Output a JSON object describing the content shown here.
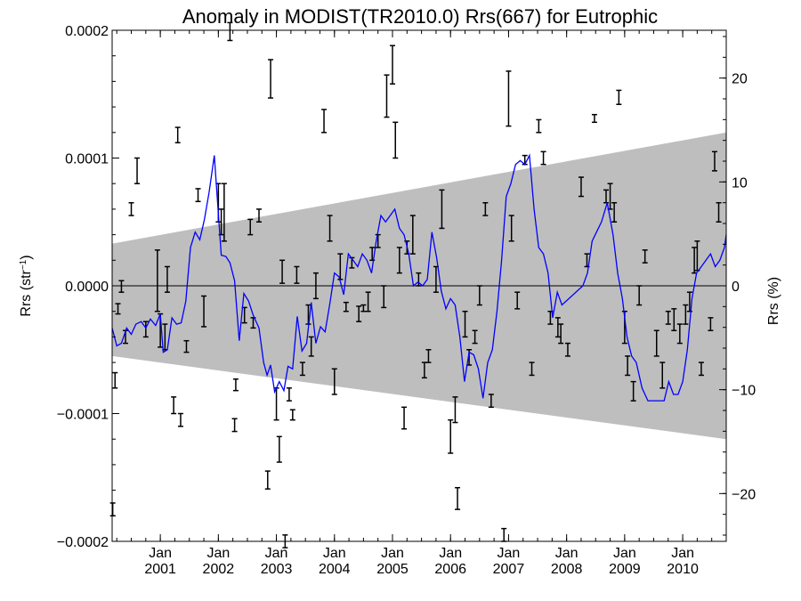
{
  "chart_data": {
    "type": "line",
    "title": "Anomaly in MODIST(TR2010.0) Rrs(667) for Eutrophic",
    "ylabel_left": "Rrs (str",
    "ylabel_left_sup": "−1",
    "ylabel_left_end": ")",
    "ylabel_right": "Rrs (%)",
    "xlim": [
      2000.17,
      2010.75
    ],
    "ylim_left": [
      -0.0002,
      0.0002
    ],
    "ylim_right": [
      -24.6,
      24.6
    ],
    "left_ticks": [
      {
        "value": 0.0002,
        "label": "0.0002"
      },
      {
        "value": 0.0001,
        "label": "0.0001"
      },
      {
        "value": 0.0,
        "label": "0.0000"
      },
      {
        "value": -0.0001,
        "label": "−0.0001"
      },
      {
        "value": -0.0002,
        "label": "−0.0002"
      }
    ],
    "right_ticks": [
      {
        "value": 20,
        "label": "20"
      },
      {
        "value": 10,
        "label": "10"
      },
      {
        "value": 0,
        "label": "0"
      },
      {
        "value": -10,
        "label": "−10"
      },
      {
        "value": -20,
        "label": "−20"
      }
    ],
    "x_ticks": [
      {
        "value": 2001.0,
        "label_top": "Jan",
        "label_bottom": "2001"
      },
      {
        "value": 2002.0,
        "label_top": "Jan",
        "label_bottom": "2002"
      },
      {
        "value": 2003.0,
        "label_top": "Jan",
        "label_bottom": "2003"
      },
      {
        "value": 2004.0,
        "label_top": "Jan",
        "label_bottom": "2004"
      },
      {
        "value": 2005.0,
        "label_top": "Jan",
        "label_bottom": "2005"
      },
      {
        "value": 2006.0,
        "label_top": "Jan",
        "label_bottom": "2006"
      },
      {
        "value": 2007.0,
        "label_top": "Jan",
        "label_bottom": "2007"
      },
      {
        "value": 2008.0,
        "label_top": "Jan",
        "label_bottom": "2008"
      },
      {
        "value": 2009.0,
        "label_top": "Jan",
        "label_bottom": "2009"
      },
      {
        "value": 2010.0,
        "label_top": "Jan",
        "label_bottom": "2010"
      }
    ],
    "band": {
      "start": {
        "x": 2000.17,
        "upper": 3.3e-05,
        "lower": -5.5e-05
      },
      "end": {
        "x": 2010.75,
        "upper": 0.00012,
        "lower": -0.00012
      },
      "color": "#bebebe"
    },
    "zero_line": true,
    "line_series": {
      "color": "#0000ff",
      "points": [
        [
          2000.17,
          -3.3e-05
        ],
        [
          2000.25,
          -4.7e-05
        ],
        [
          2000.33,
          -4.5e-05
        ],
        [
          2000.42,
          -3.3e-05
        ],
        [
          2000.5,
          -3.8e-05
        ],
        [
          2000.58,
          -3e-05
        ],
        [
          2000.67,
          -2.8e-05
        ],
        [
          2000.75,
          -3.3e-05
        ],
        [
          2000.83,
          -2.6e-05
        ],
        [
          2000.92,
          -3.1e-05
        ],
        [
          2001.0,
          -2.2e-05
        ],
        [
          2001.05,
          -5.2e-05
        ],
        [
          2001.12,
          -5e-05
        ],
        [
          2001.2,
          -2.5e-05
        ],
        [
          2001.28,
          -3e-05
        ],
        [
          2001.36,
          -2.9e-05
        ],
        [
          2001.44,
          -1.2e-05
        ],
        [
          2001.52,
          3e-05
        ],
        [
          2001.6,
          4.2e-05
        ],
        [
          2001.68,
          3.6e-05
        ],
        [
          2001.76,
          5.2e-05
        ],
        [
          2001.84,
          7.3e-05
        ],
        [
          2001.93,
          0.000102
        ],
        [
          2001.98,
          7e-05
        ],
        [
          2002.05,
          2.4e-05
        ],
        [
          2002.13,
          2.3e-05
        ],
        [
          2002.2,
          1.8e-05
        ],
        [
          2002.28,
          4e-06
        ],
        [
          2002.36,
          -4.3e-05
        ],
        [
          2002.44,
          -6e-06
        ],
        [
          2002.52,
          -1.2e-05
        ],
        [
          2002.6,
          -2.3e-05
        ],
        [
          2002.7,
          -3.3e-05
        ],
        [
          2002.78,
          -6e-05
        ],
        [
          2002.84,
          -7e-05
        ],
        [
          2002.9,
          -6.2e-05
        ],
        [
          2002.97,
          -8.3e-05
        ],
        [
          2003.05,
          -7.5e-05
        ],
        [
          2003.13,
          -8.2e-05
        ],
        [
          2003.2,
          -6.3e-05
        ],
        [
          2003.28,
          -6.5e-05
        ],
        [
          2003.36,
          -2.4e-05
        ],
        [
          2003.44,
          -5.1e-05
        ],
        [
          2003.52,
          -4.5e-05
        ],
        [
          2003.6,
          -1.3e-05
        ],
        [
          2003.68,
          -4.5e-05
        ],
        [
          2003.76,
          -3.2e-05
        ],
        [
          2003.84,
          -3.6e-05
        ],
        [
          2003.92,
          -1.4e-05
        ],
        [
          2004.0,
          1e-05
        ],
        [
          2004.08,
          7e-06
        ],
        [
          2004.16,
          -7e-06
        ],
        [
          2004.24,
          2.5e-05
        ],
        [
          2004.32,
          2e-05
        ],
        [
          2004.4,
          1.5e-05
        ],
        [
          2004.48,
          2.5e-05
        ],
        [
          2004.56,
          2e-05
        ],
        [
          2004.64,
          1e-05
        ],
        [
          2004.72,
          3.5e-05
        ],
        [
          2004.8,
          5.5e-05
        ],
        [
          2004.88,
          5e-05
        ],
        [
          2004.96,
          5.5e-05
        ],
        [
          2005.04,
          6e-05
        ],
        [
          2005.12,
          4.5e-05
        ],
        [
          2005.2,
          4e-05
        ],
        [
          2005.28,
          2.5e-05
        ],
        [
          2005.36,
          0.0
        ],
        [
          2005.44,
          3e-06
        ],
        [
          2005.52,
          0.0
        ],
        [
          2005.6,
          5e-06
        ],
        [
          2005.68,
          4.2e-05
        ],
        [
          2005.76,
          2.2e-05
        ],
        [
          2005.84,
          -4e-06
        ],
        [
          2005.92,
          -1.8e-05
        ],
        [
          2006.0,
          -1e-05
        ],
        [
          2006.08,
          -1.5e-05
        ],
        [
          2006.16,
          -4e-05
        ],
        [
          2006.24,
          -7.5e-05
        ],
        [
          2006.32,
          -5.2e-05
        ],
        [
          2006.4,
          -5.4e-05
        ],
        [
          2006.48,
          -6.5e-05
        ],
        [
          2006.56,
          -8.8e-05
        ],
        [
          2006.64,
          -6e-05
        ],
        [
          2006.72,
          -5e-05
        ],
        [
          2006.8,
          -2e-05
        ],
        [
          2006.88,
          2e-05
        ],
        [
          2006.96,
          7e-05
        ],
        [
          2007.04,
          8e-05
        ],
        [
          2007.12,
          9.5e-05
        ],
        [
          2007.2,
          9.8e-05
        ],
        [
          2007.28,
          9.5e-05
        ],
        [
          2007.36,
          0.000102
        ],
        [
          2007.44,
          6e-05
        ],
        [
          2007.52,
          3e-05
        ],
        [
          2007.6,
          2.5e-05
        ],
        [
          2007.68,
          1e-05
        ],
        [
          2007.76,
          -2.5e-05
        ],
        [
          2007.84,
          -5e-06
        ],
        [
          2007.92,
          -1.5e-05
        ],
        [
          2008.28,
          0.0
        ],
        [
          2008.36,
          1e-05
        ],
        [
          2008.44,
          3.5e-05
        ],
        [
          2008.6,
          5e-05
        ],
        [
          2008.7,
          6.5e-05
        ],
        [
          2008.8,
          4e-05
        ],
        [
          2008.88,
          1e-05
        ],
        [
          2008.96,
          -1e-05
        ],
        [
          2009.04,
          -4e-05
        ],
        [
          2009.12,
          -5.5e-05
        ],
        [
          2009.2,
          -6e-05
        ],
        [
          2009.3,
          -8e-05
        ],
        [
          2009.4,
          -9e-05
        ],
        [
          2009.5,
          -9e-05
        ],
        [
          2009.6,
          -9e-05
        ],
        [
          2009.68,
          -9e-05
        ],
        [
          2009.76,
          -7.5e-05
        ],
        [
          2009.84,
          -8.5e-05
        ],
        [
          2009.92,
          -8.5e-05
        ],
        [
          2010.0,
          -7.5e-05
        ],
        [
          2010.08,
          -5e-05
        ],
        [
          2010.16,
          -1e-05
        ],
        [
          2010.24,
          1e-05
        ],
        [
          2010.32,
          1.5e-05
        ],
        [
          2010.4,
          2e-05
        ],
        [
          2010.48,
          2.5e-05
        ],
        [
          2010.56,
          1.5e-05
        ],
        [
          2010.64,
          2e-05
        ],
        [
          2010.72,
          3e-05
        ],
        [
          2010.75,
          4e-05
        ]
      ]
    },
    "error_bars": {
      "color": "#000000",
      "items": [
        [
          2000.18,
          -0.00018,
          -0.00017
        ],
        [
          2000.22,
          -8e-05,
          -6.8e-05
        ],
        [
          2000.27,
          -2.2e-05,
          -1.4e-05
        ],
        [
          2000.33,
          -5e-06,
          4e-06
        ],
        [
          2000.4,
          -4.5e-05,
          -3.5e-05
        ],
        [
          2000.5,
          5.5e-05,
          6.5e-05
        ],
        [
          2000.6,
          8e-05,
          0.0001
        ],
        [
          2000.75,
          -4e-05,
          -2.8e-05
        ],
        [
          2000.95,
          -2e-05,
          2.8e-05
        ],
        [
          2001.0,
          -4.8e-05,
          -2.2e-05
        ],
        [
          2001.08,
          -5e-05,
          -3e-05
        ],
        [
          2001.12,
          -5e-06,
          1.5e-05
        ],
        [
          2001.23,
          -0.0001,
          -8.7e-05
        ],
        [
          2001.3,
          0.000112,
          0.000124
        ],
        [
          2001.35,
          -0.00011,
          -0.0001
        ],
        [
          2001.45,
          -5.2e-05,
          -4.3e-05
        ],
        [
          2001.65,
          6.6e-05,
          7.6e-05
        ],
        [
          2001.75,
          -3.2e-05,
          -8e-06
        ],
        [
          2002.0,
          5e-05,
          8e-05
        ],
        [
          2002.05,
          4e-05,
          6e-05
        ],
        [
          2002.1,
          3.5e-05,
          8e-05
        ],
        [
          2002.2,
          0.000192,
          0.000206
        ],
        [
          2002.28,
          -0.000114,
          -0.000104
        ],
        [
          2002.3,
          -8.2e-05,
          -7.3e-05
        ],
        [
          2002.45,
          -1.7e-05,
          -2.9e-05
        ],
        [
          2002.55,
          4e-05,
          5.2e-05
        ],
        [
          2002.6,
          -2.5e-05,
          -3.3e-05
        ],
        [
          2002.7,
          5e-05,
          6e-05
        ],
        [
          2002.85,
          -0.000145,
          -0.000159
        ],
        [
          2002.9,
          0.000147,
          0.000177
        ],
        [
          2003.0,
          -8e-05,
          -0.000105
        ],
        [
          2003.05,
          -0.000138,
          -0.000118
        ],
        [
          2003.1,
          2e-05,
          2e-06
        ],
        [
          2003.15,
          -0.000205,
          -0.000195
        ],
        [
          2003.22,
          -9e-05,
          -8e-05
        ],
        [
          2003.28,
          -0.000105,
          -9.7e-05
        ],
        [
          2003.35,
          1.5e-05,
          2e-06
        ],
        [
          2003.45,
          -7e-05,
          -6e-05
        ],
        [
          2003.55,
          -1.5e-05,
          -3e-05
        ],
        [
          2003.6,
          -5.5e-05,
          -4e-05
        ],
        [
          2003.68,
          -1e-05,
          1e-05
        ],
        [
          2003.82,
          0.00012,
          0.000138
        ],
        [
          2003.92,
          3.5e-05,
          5.5e-05
        ],
        [
          2004.0,
          -8.5e-05,
          -6.5e-05
        ],
        [
          2004.1,
          5e-06,
          2.5e-05
        ],
        [
          2004.2,
          -1.3e-05,
          -2e-05
        ],
        [
          2004.3,
          1.4e-05,
          2.2e-05
        ],
        [
          2004.42,
          -1.6e-05,
          -2.8e-05
        ],
        [
          2004.5,
          -1.5e-05,
          -2e-05
        ],
        [
          2004.58,
          -2e-05,
          -5e-06
        ],
        [
          2004.65,
          2e-05,
          3e-05
        ],
        [
          2004.75,
          3e-05,
          4e-05
        ],
        [
          2004.85,
          -1.7e-05,
          0.0
        ],
        [
          2004.9,
          0.000132,
          0.000165
        ],
        [
          2005.0,
          0.000158,
          0.000188
        ],
        [
          2005.05,
          0.0001,
          0.000128
        ],
        [
          2005.12,
          1e-05,
          3e-05
        ],
        [
          2005.2,
          -9.5e-05,
          -0.000112
        ],
        [
          2005.25,
          2.5e-05,
          3.5e-05
        ],
        [
          2005.35,
          2.5e-05,
          5.5e-05
        ],
        [
          2005.45,
          0.0,
          1e-05
        ],
        [
          2005.55,
          -6e-05,
          -7.2e-05
        ],
        [
          2005.62,
          -5e-05,
          -6e-05
        ],
        [
          2005.75,
          -5e-06,
          1.5e-05
        ],
        [
          2005.85,
          4.5e-05,
          7.5e-05
        ],
        [
          2006.0,
          -0.000105,
          -0.000131
        ],
        [
          2006.08,
          -8.7e-05,
          -0.000107
        ],
        [
          2006.12,
          -0.000158,
          -0.000175
        ],
        [
          2006.25,
          -2e-05,
          -4e-05
        ],
        [
          2006.32,
          -5e-05,
          -6.2e-05
        ],
        [
          2006.42,
          -3.5e-05,
          -4.5e-05
        ],
        [
          2006.5,
          -1.5e-05,
          0.0
        ],
        [
          2006.6,
          5.5e-05,
          6.5e-05
        ],
        [
          2006.7,
          -8.5e-05,
          -9.5e-05
        ],
        [
          2006.92,
          -0.00019,
          -0.0002
        ],
        [
          2007.0,
          0.000125,
          0.000168
        ],
        [
          2007.05,
          3.5e-05,
          5.5e-05
        ],
        [
          2007.15,
          -5e-06,
          -1.8e-05
        ],
        [
          2007.28,
          9.5e-05,
          0.000102
        ],
        [
          2007.4,
          -6e-05,
          -7e-05
        ],
        [
          2007.52,
          0.00012,
          0.00013
        ],
        [
          2007.6,
          9.5e-05,
          0.000105
        ],
        [
          2007.72,
          -2e-05,
          -3e-05
        ],
        [
          2007.85,
          -2.5e-05,
          -4e-05
        ],
        [
          2007.9,
          -3e-05,
          -4.5e-05
        ],
        [
          2008.02,
          -4.5e-05,
          -5.5e-05
        ],
        [
          2008.25,
          7e-05,
          8.5e-05
        ],
        [
          2008.35,
          1.5e-05,
          2.5e-05
        ],
        [
          2008.48,
          0.000128,
          0.000134
        ],
        [
          2008.68,
          6.5e-05,
          7.5e-05
        ],
        [
          2008.75,
          6e-05,
          8e-05
        ],
        [
          2008.82,
          5e-05,
          6.5e-05
        ],
        [
          2008.9,
          0.000142,
          0.000153
        ],
        [
          2009.0,
          -2e-05,
          -4.5e-05
        ],
        [
          2009.05,
          -5.5e-05,
          -7e-05
        ],
        [
          2009.15,
          -7.5e-05,
          -9e-05
        ],
        [
          2009.25,
          -1.5e-05,
          0.0
        ],
        [
          2009.35,
          1.8e-05,
          2.8e-05
        ],
        [
          2009.55,
          -3.5e-05,
          -5.5e-05
        ],
        [
          2009.65,
          -6e-05,
          -8e-05
        ],
        [
          2009.75,
          -2e-05,
          -3e-05
        ],
        [
          2009.85,
          -1.8e-05,
          -3.5e-05
        ],
        [
          2009.95,
          -3e-05,
          -4.5e-05
        ],
        [
          2010.05,
          -1.5e-05,
          -3e-05
        ],
        [
          2010.12,
          -5e-06,
          -2e-05
        ],
        [
          2010.2,
          1e-05,
          3e-05
        ],
        [
          2010.25,
          1.2e-05,
          3.5e-05
        ],
        [
          2010.32,
          -6e-05,
          -7e-05
        ],
        [
          2010.48,
          -2.5e-05,
          -3.5e-05
        ],
        [
          2010.55,
          9e-05,
          0.000105
        ],
        [
          2010.62,
          5e-05,
          6.5e-05
        ]
      ]
    }
  }
}
